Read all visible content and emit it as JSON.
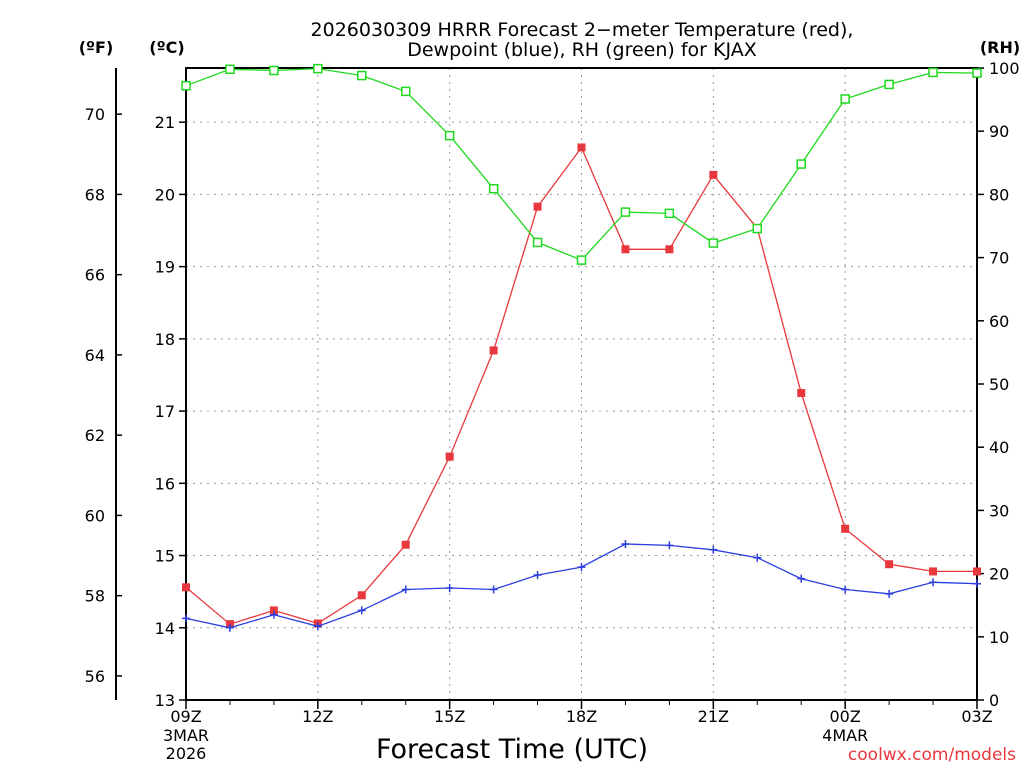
{
  "chart_data": {
    "type": "line",
    "title_line1": "2026030309 HRRR Forecast 2−meter Temperature (red),",
    "title_line2": "Dewpoint (blue), RH (green) for KJAX",
    "xlabel": "Forecast Time (UTC)",
    "left_unit_f": "(ºF)",
    "left_unit_c": "(ºC)",
    "right_unit": "(RH)",
    "credit": "coolwx.com/models",
    "x_hours": [
      0,
      1,
      2,
      3,
      4,
      5,
      6,
      7,
      8,
      9,
      10,
      11,
      12,
      13,
      14,
      15,
      16,
      17,
      18
    ],
    "x_ticks": [
      {
        "h": 0,
        "label": "09Z",
        "sub1": "3MAR",
        "sub2": "2026"
      },
      {
        "h": 3,
        "label": "12Z",
        "sub1": "",
        "sub2": ""
      },
      {
        "h": 6,
        "label": "15Z",
        "sub1": "",
        "sub2": ""
      },
      {
        "h": 9,
        "label": "18Z",
        "sub1": "",
        "sub2": ""
      },
      {
        "h": 12,
        "label": "21Z",
        "sub1": "",
        "sub2": ""
      },
      {
        "h": 15,
        "label": "00Z",
        "sub1": "4MAR",
        "sub2": ""
      },
      {
        "h": 18,
        "label": "03Z",
        "sub1": "",
        "sub2": ""
      }
    ],
    "celsius_axis": {
      "range": [
        13,
        21.75
      ],
      "ticks": [
        13,
        14,
        15,
        16,
        17,
        18,
        19,
        20,
        21
      ]
    },
    "fahrenheit_axis": {
      "range": [
        55.4,
        71.15
      ],
      "ticks": [
        56,
        58,
        60,
        62,
        64,
        66,
        68,
        70
      ]
    },
    "rh_axis": {
      "range": [
        0,
        100
      ],
      "ticks": [
        0,
        10,
        20,
        30,
        40,
        50,
        60,
        70,
        80,
        90,
        100
      ]
    },
    "series": [
      {
        "name": "Temperature",
        "color": "#e8383d",
        "marker": "filled-square",
        "axis": "celsius",
        "values": [
          14.56,
          14.05,
          14.24,
          14.06,
          14.45,
          15.15,
          16.37,
          17.84,
          19.83,
          20.65,
          19.24,
          19.24,
          20.27,
          19.53,
          17.25,
          15.37,
          14.88,
          14.78,
          14.78
        ]
      },
      {
        "name": "Dewpoint",
        "color": "#2b3fe0",
        "marker": "plus",
        "axis": "celsius",
        "values": [
          14.13,
          14.0,
          14.18,
          14.02,
          14.24,
          14.53,
          14.55,
          14.53,
          14.73,
          14.84,
          15.16,
          15.14,
          15.08,
          14.97,
          14.68,
          14.53,
          14.47,
          14.63,
          14.61
        ]
      },
      {
        "name": "RH",
        "color": "#1fd81f",
        "marker": "open-square",
        "axis": "rh",
        "values": [
          97.2,
          99.8,
          99.6,
          99.9,
          98.8,
          96.3,
          89.3,
          80.9,
          72.4,
          69.6,
          77.2,
          77.0,
          72.3,
          74.6,
          84.8,
          95.1,
          97.4,
          99.3,
          99.2
        ]
      }
    ]
  }
}
